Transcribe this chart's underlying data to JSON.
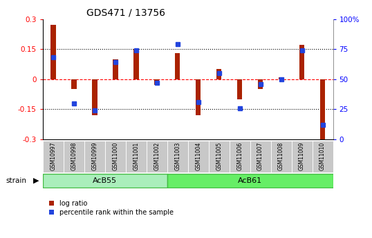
{
  "title": "GDS471 / 13756",
  "samples": [
    "GSM10997",
    "GSM10998",
    "GSM10999",
    "GSM11000",
    "GSM11001",
    "GSM11002",
    "GSM11003",
    "GSM11004",
    "GSM11005",
    "GSM11006",
    "GSM11007",
    "GSM11008",
    "GSM11009",
    "GSM11010"
  ],
  "log_ratio": [
    0.27,
    -0.05,
    -0.18,
    0.1,
    0.15,
    -0.03,
    0.13,
    -0.18,
    0.05,
    -0.1,
    -0.05,
    0.01,
    0.17,
    -0.3
  ],
  "percentile_rank": [
    68,
    30,
    24,
    64,
    74,
    47,
    79,
    31,
    55,
    26,
    46,
    50,
    74,
    12
  ],
  "groups": [
    {
      "label": "AcB55",
      "start": 0,
      "end": 5
    },
    {
      "label": "AcB61",
      "start": 6,
      "end": 13
    }
  ],
  "acb55_color": "#AAEEBB",
  "acb61_color": "#66EE66",
  "bar_color_red": "#AA2200",
  "bar_color_blue": "#2244DD",
  "ylim_left": [
    -0.3,
    0.3
  ],
  "ylim_right": [
    0,
    100
  ],
  "yticks_left": [
    -0.3,
    -0.15,
    0.0,
    0.15,
    0.3
  ],
  "yticks_right": [
    0,
    25,
    50,
    75,
    100
  ],
  "hlines_dotted": [
    -0.15,
    0.15
  ],
  "hline_zero": 0.0,
  "label_bg": "#C8C8C8",
  "legend_items": [
    "log ratio",
    "percentile rank within the sample"
  ]
}
